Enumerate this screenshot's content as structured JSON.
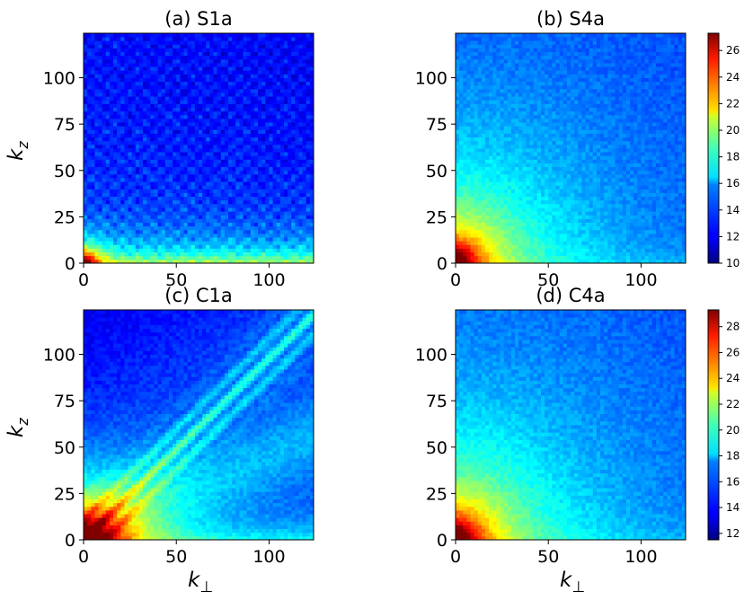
{
  "chart_data": [
    {
      "type": "heatmap",
      "title": "(a) S1a",
      "xlabel": "",
      "ylabel": "k_z",
      "xlim": [
        0,
        124
      ],
      "ylim": [
        0,
        124
      ],
      "xticks": [
        "0",
        "50",
        "100"
      ],
      "yticks": [
        "0",
        "25",
        "50",
        "75",
        "100"
      ],
      "colormap": "jet",
      "pattern": "strong peak near origin, weak checkerboard grid, uniform low values"
    },
    {
      "type": "heatmap",
      "title": "(b) S4a",
      "xlabel": "",
      "ylabel": "",
      "xlim": [
        0,
        124
      ],
      "ylim": [
        0,
        124
      ],
      "xticks": [
        "0",
        "50",
        "100"
      ],
      "yticks": [
        "0",
        "25",
        "50",
        "75",
        "100"
      ],
      "colormap": "jet",
      "colorbar": {
        "range": [
          10,
          27.3
        ],
        "ticks": [
          "10",
          "12",
          "14",
          "16",
          "18",
          "20",
          "22",
          "24",
          "26"
        ]
      },
      "pattern": "peak near origin with broad radial falloff"
    },
    {
      "type": "heatmap",
      "title": "(c) C1a",
      "xlabel": "k_⊥",
      "ylabel": "k_z",
      "xlim": [
        0,
        124
      ],
      "ylim": [
        0,
        124
      ],
      "xticks": [
        "0",
        "50",
        "100"
      ],
      "yticks": [
        "0",
        "25",
        "50",
        "75",
        "100"
      ],
      "colormap": "jet",
      "pattern": "large peak near origin with diagonal streaks along k_z ≈ k_⊥"
    },
    {
      "type": "heatmap",
      "title": "(d) C4a",
      "xlabel": "k_⊥",
      "ylabel": "",
      "xlim": [
        0,
        124
      ],
      "ylim": [
        0,
        124
      ],
      "xticks": [
        "0",
        "50",
        "100"
      ],
      "yticks": [
        "0",
        "25",
        "50",
        "75",
        "100"
      ],
      "colormap": "jet",
      "colorbar": {
        "range": [
          11.5,
          29.3
        ],
        "ticks": [
          "12",
          "14",
          "16",
          "18",
          "20",
          "22",
          "24",
          "26",
          "28"
        ]
      },
      "pattern": "peak near origin with broad radial falloff"
    }
  ]
}
